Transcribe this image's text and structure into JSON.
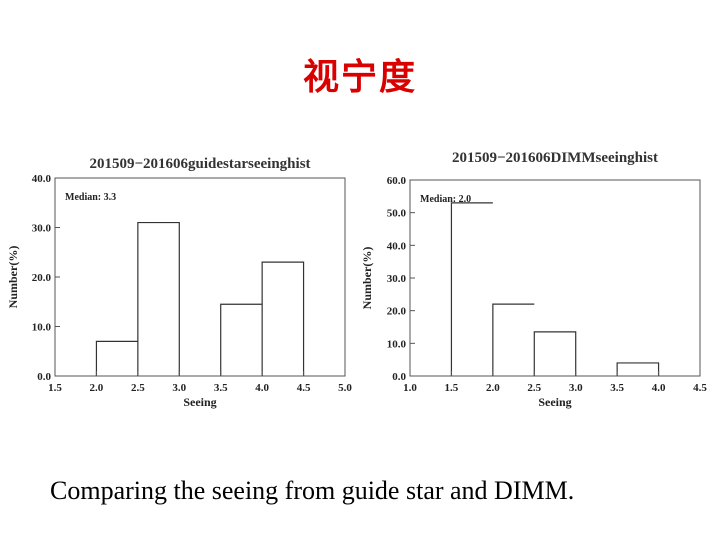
{
  "slide": {
    "title": "视宁度",
    "caption": "Comparing the seeing from guide star and DIMM."
  },
  "chart_data": [
    {
      "type": "bar",
      "title": "201509−201606guidestarseeinghist",
      "xlabel": "Seeing",
      "ylabel": "Number(%)",
      "annotation": "Median: 3.3",
      "xlim": [
        1.5,
        5.0
      ],
      "ylim": [
        0,
        40
      ],
      "xticks": [
        "1.5",
        "2.0",
        "2.5",
        "3.0",
        "3.5",
        "4.0",
        "4.5",
        "5.0"
      ],
      "yticks": [
        "0.0",
        "10.0",
        "20.0",
        "30.0",
        "40.0"
      ],
      "bins": [
        {
          "x0": 2.0,
          "x1": 2.5,
          "value": 7
        },
        {
          "x0": 2.5,
          "x1": 3.0,
          "value": 31
        },
        {
          "x0": 3.0,
          "x1": 3.5,
          "value": 0
        },
        {
          "x0": 3.5,
          "x1": 4.0,
          "value": 14.5
        },
        {
          "x0": 4.0,
          "x1": 4.5,
          "value": 23
        }
      ]
    },
    {
      "type": "bar",
      "title": "201509−201606DIMMseeinghist",
      "xlabel": "Seeing",
      "ylabel": "Number(%)",
      "annotation": "Median: 2.0",
      "xlim": [
        1.0,
        4.5
      ],
      "ylim": [
        0,
        60
      ],
      "xticks": [
        "1.0",
        "1.5",
        "2.0",
        "2.5",
        "3.0",
        "3.5",
        "4.0",
        "4.5"
      ],
      "yticks": [
        "0.0",
        "10.0",
        "20.0",
        "30.0",
        "40.0",
        "50.0",
        "60.0"
      ],
      "bins": [
        {
          "x0": 1.5,
          "x1": 2.0,
          "value": 53
        },
        {
          "x0": 2.0,
          "x1": 2.5,
          "value": 22
        },
        {
          "x0": 2.5,
          "x1": 3.0,
          "value": 13.5
        },
        {
          "x0": 3.0,
          "x1": 3.5,
          "value": 0
        },
        {
          "x0": 3.5,
          "x1": 4.0,
          "value": 4
        }
      ]
    }
  ]
}
